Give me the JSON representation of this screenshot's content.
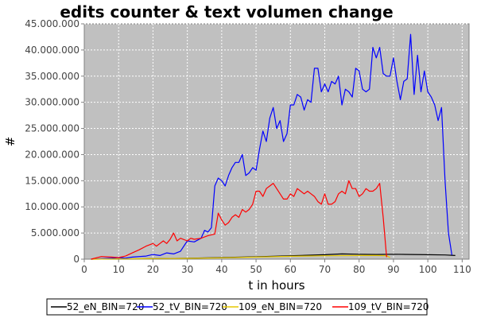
{
  "chart_data": {
    "type": "line",
    "title": "edits counter & text volumen change",
    "xlabel": "t in hours",
    "ylabel": "#",
    "xlim": [
      0,
      112
    ],
    "ylim": [
      0,
      45000000
    ],
    "x_ticks": [
      0,
      10,
      20,
      30,
      40,
      50,
      60,
      70,
      80,
      90,
      100,
      110
    ],
    "x_tick_labels": [
      "0",
      "10",
      "20",
      "30",
      "40",
      "50",
      "60",
      "70",
      "80",
      "90",
      "100",
      "110"
    ],
    "y_ticks": [
      0,
      5000000,
      10000000,
      15000000,
      20000000,
      25000000,
      30000000,
      35000000,
      40000000,
      45000000
    ],
    "y_tick_labels": [
      "0",
      "5.000.000",
      "10.000.000",
      "15.000.000",
      "20.000.000",
      "25.000.000",
      "30.000.000",
      "35.000.000",
      "40.000.000",
      "45.000.000"
    ],
    "grid": true,
    "legend_position": "bottom",
    "background_color": "#c0c0c0",
    "series": [
      {
        "name": "52_eN_BIN=720",
        "color": "#000000",
        "points": [
          [
            2,
            0
          ],
          [
            10,
            50000
          ],
          [
            20,
            100000
          ],
          [
            30,
            180000
          ],
          [
            40,
            300000
          ],
          [
            50,
            450000
          ],
          [
            60,
            650000
          ],
          [
            70,
            850000
          ],
          [
            75,
            1000000
          ],
          [
            80,
            950000
          ],
          [
            85,
            900000
          ],
          [
            90,
            950000
          ],
          [
            95,
            900000
          ],
          [
            100,
            850000
          ],
          [
            105,
            800000
          ],
          [
            108,
            700000
          ]
        ]
      },
      {
        "name": "52_tV_BIN=720",
        "color": "#0000ff",
        "points": [
          [
            2,
            0
          ],
          [
            5,
            100000
          ],
          [
            8,
            200000
          ],
          [
            10,
            300000
          ],
          [
            12,
            200000
          ],
          [
            14,
            400000
          ],
          [
            16,
            500000
          ],
          [
            18,
            600000
          ],
          [
            20,
            900000
          ],
          [
            22,
            700000
          ],
          [
            24,
            1200000
          ],
          [
            26,
            1000000
          ],
          [
            28,
            1500000
          ],
          [
            30,
            3500000
          ],
          [
            32,
            3300000
          ],
          [
            34,
            4000000
          ],
          [
            35,
            5500000
          ],
          [
            36,
            5200000
          ],
          [
            37,
            6000000
          ],
          [
            38,
            14000000
          ],
          [
            39,
            15500000
          ],
          [
            40,
            15000000
          ],
          [
            41,
            14000000
          ],
          [
            42,
            16000000
          ],
          [
            43,
            17500000
          ],
          [
            44,
            18500000
          ],
          [
            45,
            18500000
          ],
          [
            46,
            20000000
          ],
          [
            47,
            16000000
          ],
          [
            48,
            16500000
          ],
          [
            49,
            17500000
          ],
          [
            50,
            17000000
          ],
          [
            51,
            21000000
          ],
          [
            52,
            24500000
          ],
          [
            53,
            22500000
          ],
          [
            54,
            27000000
          ],
          [
            55,
            29000000
          ],
          [
            56,
            25000000
          ],
          [
            57,
            26500000
          ],
          [
            58,
            22500000
          ],
          [
            59,
            24000000
          ],
          [
            60,
            29500000
          ],
          [
            61,
            29500000
          ],
          [
            62,
            31500000
          ],
          [
            63,
            31000000
          ],
          [
            64,
            28500000
          ],
          [
            65,
            30500000
          ],
          [
            66,
            30000000
          ],
          [
            67,
            36500000
          ],
          [
            68,
            36500000
          ],
          [
            69,
            32000000
          ],
          [
            70,
            33500000
          ],
          [
            71,
            32000000
          ],
          [
            72,
            34000000
          ],
          [
            73,
            33500000
          ],
          [
            74,
            35000000
          ],
          [
            75,
            29500000
          ],
          [
            76,
            32500000
          ],
          [
            77,
            32000000
          ],
          [
            78,
            31000000
          ],
          [
            79,
            36500000
          ],
          [
            80,
            36000000
          ],
          [
            81,
            32500000
          ],
          [
            82,
            32000000
          ],
          [
            83,
            32500000
          ],
          [
            84,
            40500000
          ],
          [
            85,
            38500000
          ],
          [
            86,
            40500000
          ],
          [
            87,
            35500000
          ],
          [
            88,
            35000000
          ],
          [
            89,
            35000000
          ],
          [
            90,
            38500000
          ],
          [
            91,
            34000000
          ],
          [
            92,
            30500000
          ],
          [
            93,
            34000000
          ],
          [
            94,
            34500000
          ],
          [
            95,
            43000000
          ],
          [
            96,
            31500000
          ],
          [
            97,
            39000000
          ],
          [
            98,
            32000000
          ],
          [
            99,
            36000000
          ],
          [
            100,
            32000000
          ],
          [
            101,
            31000000
          ],
          [
            102,
            29500000
          ],
          [
            103,
            26500000
          ],
          [
            104,
            29000000
          ],
          [
            105,
            15000000
          ],
          [
            106,
            5000000
          ],
          [
            107,
            800000
          ]
        ]
      },
      {
        "name": "109_eN_BIN=720",
        "color": "#e6c800",
        "points": [
          [
            2,
            0
          ],
          [
            10,
            50000
          ],
          [
            20,
            100000
          ],
          [
            30,
            150000
          ],
          [
            40,
            250000
          ],
          [
            50,
            400000
          ],
          [
            60,
            550000
          ],
          [
            70,
            650000
          ],
          [
            80,
            700000
          ],
          [
            85,
            700000
          ],
          [
            88,
            650000
          ],
          [
            89,
            300000
          ]
        ]
      },
      {
        "name": "109_tV_BIN=720",
        "color": "#ff0000",
        "points": [
          [
            2,
            0
          ],
          [
            5,
            500000
          ],
          [
            8,
            400000
          ],
          [
            10,
            300000
          ],
          [
            12,
            600000
          ],
          [
            14,
            1200000
          ],
          [
            16,
            1800000
          ],
          [
            18,
            2500000
          ],
          [
            20,
            3000000
          ],
          [
            21,
            2500000
          ],
          [
            22,
            3000000
          ],
          [
            23,
            3500000
          ],
          [
            24,
            3000000
          ],
          [
            25,
            3800000
          ],
          [
            26,
            5000000
          ],
          [
            27,
            3500000
          ],
          [
            28,
            4000000
          ],
          [
            30,
            3500000
          ],
          [
            31,
            4000000
          ],
          [
            32,
            3800000
          ],
          [
            34,
            4000000
          ],
          [
            36,
            4500000
          ],
          [
            38,
            4800000
          ],
          [
            39,
            8800000
          ],
          [
            40,
            7500000
          ],
          [
            41,
            6500000
          ],
          [
            42,
            7000000
          ],
          [
            43,
            8000000
          ],
          [
            44,
            8500000
          ],
          [
            45,
            8000000
          ],
          [
            46,
            9500000
          ],
          [
            47,
            9000000
          ],
          [
            48,
            9500000
          ],
          [
            49,
            10500000
          ],
          [
            50,
            13000000
          ],
          [
            51,
            13000000
          ],
          [
            52,
            12000000
          ],
          [
            53,
            13500000
          ],
          [
            54,
            14000000
          ],
          [
            55,
            14500000
          ],
          [
            56,
            13500000
          ],
          [
            57,
            12500000
          ],
          [
            58,
            11500000
          ],
          [
            59,
            11500000
          ],
          [
            60,
            12500000
          ],
          [
            61,
            12000000
          ],
          [
            62,
            13500000
          ],
          [
            63,
            13000000
          ],
          [
            64,
            12500000
          ],
          [
            65,
            13000000
          ],
          [
            66,
            12500000
          ],
          [
            67,
            12000000
          ],
          [
            68,
            11000000
          ],
          [
            69,
            10500000
          ],
          [
            70,
            12500000
          ],
          [
            71,
            10500000
          ],
          [
            72,
            10500000
          ],
          [
            73,
            11000000
          ],
          [
            74,
            12500000
          ],
          [
            75,
            13000000
          ],
          [
            76,
            12500000
          ],
          [
            77,
            15000000
          ],
          [
            78,
            13500000
          ],
          [
            79,
            13500000
          ],
          [
            80,
            12000000
          ],
          [
            81,
            12500000
          ],
          [
            82,
            13500000
          ],
          [
            83,
            13000000
          ],
          [
            84,
            13000000
          ],
          [
            85,
            13500000
          ],
          [
            86,
            14500000
          ],
          [
            87,
            8000000
          ],
          [
            88,
            400000
          ]
        ]
      }
    ]
  }
}
